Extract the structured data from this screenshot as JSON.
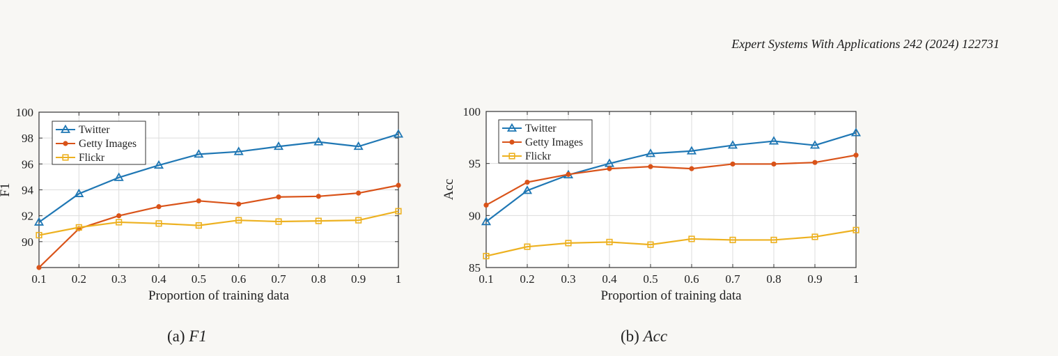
{
  "header": {
    "journal_citation": "Expert Systems With Applications 242 (2024) 122731"
  },
  "captions": [
    {
      "label": "(a)",
      "math": "F1"
    },
    {
      "label": "(b)",
      "math": "Acc"
    }
  ],
  "colors": {
    "twitter": "#1f77b4",
    "getty": "#d95319",
    "flickr": "#edb120",
    "grid": "#dcdcdc",
    "axis": "#333333"
  },
  "chart_data": [
    {
      "type": "line",
      "xlabel": "Proportion of training data",
      "ylabel": "F1",
      "x": [
        0.1,
        0.2,
        0.3,
        0.4,
        0.5,
        0.6,
        0.7,
        0.8,
        0.9,
        1
      ],
      "xticks": [
        "0.1",
        "0.2",
        "0.3",
        "0.4",
        "0.5",
        "0.6",
        "0.7",
        "0.8",
        "0.9",
        "1"
      ],
      "ylim": [
        88,
        100
      ],
      "yticks": [
        90,
        92,
        94,
        96,
        98,
        100
      ],
      "grid": true,
      "legend_position": "top-left",
      "series": [
        {
          "name": "Twitter",
          "marker": "triangle",
          "values": [
            91.5,
            93.7,
            94.95,
            95.9,
            96.75,
            96.95,
            97.35,
            97.7,
            97.35,
            98.3
          ]
        },
        {
          "name": "Getty Images",
          "marker": "star",
          "values": [
            88.0,
            91.0,
            92.0,
            92.7,
            93.15,
            92.9,
            93.45,
            93.5,
            93.75,
            94.35
          ]
        },
        {
          "name": "Flickr",
          "marker": "square",
          "values": [
            90.5,
            91.1,
            91.5,
            91.4,
            91.25,
            91.65,
            91.55,
            91.6,
            91.65,
            92.35
          ]
        }
      ]
    },
    {
      "type": "line",
      "xlabel": "Proportion of training data",
      "ylabel": "Acc",
      "x": [
        0.1,
        0.2,
        0.3,
        0.4,
        0.5,
        0.6,
        0.7,
        0.8,
        0.9,
        1
      ],
      "xticks": [
        "0.1",
        "0.2",
        "0.3",
        "0.4",
        "0.5",
        "0.6",
        "0.7",
        "0.8",
        "0.9",
        "1"
      ],
      "ylim": [
        85,
        100
      ],
      "yticks": [
        85,
        90,
        95,
        100
      ],
      "grid": true,
      "legend_position": "top-left",
      "series": [
        {
          "name": "Twitter",
          "marker": "triangle",
          "values": [
            89.4,
            92.4,
            93.9,
            95.0,
            95.95,
            96.2,
            96.75,
            97.15,
            96.75,
            97.95
          ]
        },
        {
          "name": "Getty Images",
          "marker": "star",
          "values": [
            91.0,
            93.2,
            93.95,
            94.5,
            94.7,
            94.5,
            94.95,
            94.95,
            95.1,
            95.8
          ]
        },
        {
          "name": "Flickr",
          "marker": "square",
          "values": [
            86.1,
            87.0,
            87.35,
            87.45,
            87.2,
            87.75,
            87.65,
            87.65,
            87.95,
            88.6
          ]
        }
      ]
    }
  ]
}
